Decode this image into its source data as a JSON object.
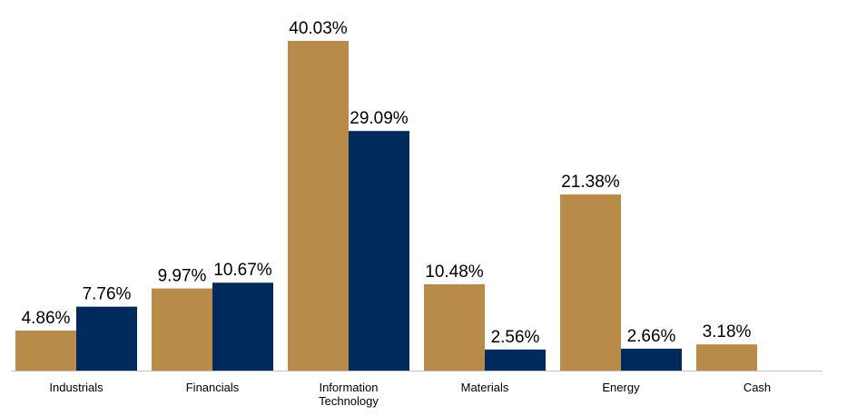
{
  "chart_data": {
    "type": "bar",
    "categories": [
      "Industrials",
      "Financials",
      "Information Technology",
      "Materials",
      "Energy",
      "Cash"
    ],
    "category_lines": [
      [
        "Industrials"
      ],
      [
        "Financials"
      ],
      [
        "Information",
        "Technology"
      ],
      [
        "Materials"
      ],
      [
        "Energy"
      ],
      [
        "Cash"
      ]
    ],
    "series": [
      {
        "color": "#B98B48",
        "values": [
          4.86,
          9.97,
          40.03,
          10.48,
          21.38,
          3.18
        ],
        "labels": [
          "4.86%",
          "9.97%",
          "40.03%",
          "10.48%",
          "21.38%",
          "3.18%"
        ]
      },
      {
        "color": "#002A5C",
        "values": [
          7.76,
          10.67,
          29.09,
          2.56,
          2.66,
          null
        ],
        "labels": [
          "7.76%",
          "10.67%",
          "29.09%",
          "2.56%",
          "2.66%",
          null
        ]
      }
    ],
    "ylim": [
      0,
      40.03
    ],
    "grid": false,
    "axis_color": "#BFBFBF"
  }
}
